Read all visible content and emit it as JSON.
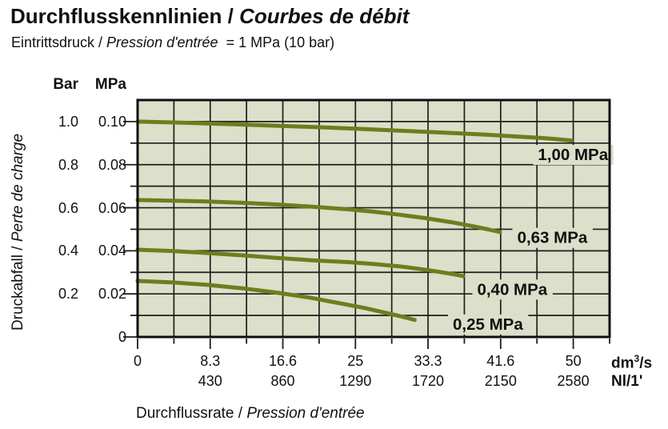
{
  "title": {
    "de": "Durchflusskennlinien /",
    "fr": "Courbes de débit"
  },
  "subtitle": {
    "de": "Eintrittsdruck /",
    "fr": "Pression d'entrée",
    "value": "= 1 MPa (10 bar)"
  },
  "y_axis": {
    "unit_bar": "Bar",
    "unit_mpa": "MPa",
    "bar_ticks": [
      "1.0",
      "0.8",
      "0.6",
      "0.4",
      "0.2"
    ],
    "bar_values": [
      0.1,
      0.08,
      0.06,
      0.04,
      0.02
    ],
    "mpa_ticks": [
      "0.10",
      "0.08",
      "0.06",
      "0.04",
      "0.02",
      "0"
    ],
    "mpa_values": [
      0.1,
      0.08,
      0.06,
      0.04,
      0.02,
      0
    ],
    "label_de": "Druckabfall /",
    "label_fr": "Perte de charge"
  },
  "x_axis": {
    "primary_ticks": [
      "0",
      "8.3",
      "16.6",
      "25",
      "33.3",
      "41.6",
      "50"
    ],
    "primary_values": [
      0,
      8.333,
      16.667,
      25,
      33.333,
      41.667,
      50
    ],
    "secondary_ticks": [
      "430",
      "860",
      "1290",
      "1720",
      "2150",
      "2580"
    ],
    "secondary_values": [
      8.333,
      16.667,
      25,
      33.333,
      41.667,
      50
    ],
    "unit_primary": {
      "pre": "dm",
      "sup": "3",
      "post": "/s"
    },
    "unit_secondary": "Nl/1'",
    "label_de": "Durchflussrate /",
    "label_fr": "Pression d'entrée"
  },
  "chart_data": {
    "type": "line",
    "title": "Durchflusskennlinien / Courbes de débit",
    "subtitle": "Eintrittsdruck / Pression d'entrée = 1 MPa (10 bar)",
    "xlabel": "Durchflussrate / Pression d'entrée",
    "ylabel": "Druckabfall / Perte de charge",
    "x_units": [
      "dm³/s",
      "Nl/1'"
    ],
    "y_units": [
      "Bar",
      "MPa"
    ],
    "xlim": [
      0,
      54.17
    ],
    "ylim": [
      0,
      0.11
    ],
    "grid": true,
    "grid_step_x": 4.1667,
    "grid_step_y": 0.01,
    "x_major_ticks": [
      0,
      8.333,
      16.667,
      25,
      33.333,
      41.667,
      50
    ],
    "x_major_labels": [
      "0",
      "8.3",
      "16.6",
      "25",
      "33.3",
      "41.6",
      "50"
    ],
    "x_minor_ticks": [
      4.167,
      12.5,
      20.833,
      29.167,
      37.5,
      45.833,
      54.17
    ],
    "x_secondary_labels_nl": [
      "430",
      "860",
      "1290",
      "1720",
      "2150",
      "2580"
    ],
    "y_major_ticks": [
      0,
      0.02,
      0.04,
      0.06,
      0.08,
      0.1
    ],
    "y_minor_ticks": [
      0.01,
      0.03,
      0.05,
      0.07,
      0.09
    ],
    "y_labels_mpa": [
      "0",
      "0.02",
      "0.04",
      "0.06",
      "0.08",
      "0.10"
    ],
    "y_labels_bar": [
      "0.2",
      "0.4",
      "0.6",
      "0.8",
      "1.0"
    ],
    "colors": {
      "curve": "#6e7d1e",
      "plot_bg": "#dcdfc9",
      "grid": "#1e1e1e",
      "border": "#0f0f0f",
      "text": "#111111"
    },
    "series": [
      {
        "label": "1,00 MPa",
        "inlet_pressure_mpa": 1.0,
        "label_x": 54.0,
        "label_y": 0.0845,
        "label_anchor": "end",
        "points": [
          [
            0,
            0.1
          ],
          [
            5,
            0.0995
          ],
          [
            10,
            0.0989
          ],
          [
            15,
            0.0982
          ],
          [
            20,
            0.0975
          ],
          [
            25,
            0.0967
          ],
          [
            30,
            0.0958
          ],
          [
            35,
            0.0949
          ],
          [
            40,
            0.0939
          ],
          [
            43,
            0.0932
          ],
          [
            46,
            0.0925
          ],
          [
            48,
            0.0919
          ],
          [
            49.8,
            0.0912
          ]
        ]
      },
      {
        "label": "0,63 MPa",
        "inlet_pressure_mpa": 0.63,
        "label_x": 47.6,
        "label_y": 0.046,
        "label_anchor": "middle",
        "points": [
          [
            0,
            0.0636
          ],
          [
            4,
            0.0633
          ],
          [
            8,
            0.0629
          ],
          [
            12,
            0.0623
          ],
          [
            16,
            0.0615
          ],
          [
            20,
            0.0605
          ],
          [
            24,
            0.0593
          ],
          [
            27,
            0.0582
          ],
          [
            30,
            0.0568
          ],
          [
            33,
            0.0552
          ],
          [
            36,
            0.0533
          ],
          [
            38.5,
            0.0514
          ],
          [
            40.2,
            0.05
          ],
          [
            41.6,
            0.0487
          ]
        ]
      },
      {
        "label": "0,40 MPa",
        "inlet_pressure_mpa": 0.4,
        "label_x": 43.0,
        "label_y": 0.022,
        "label_anchor": "middle",
        "points": [
          [
            0,
            0.0405
          ],
          [
            4,
            0.0399
          ],
          [
            8,
            0.039
          ],
          [
            12,
            0.0379
          ],
          [
            16,
            0.0367
          ],
          [
            20,
            0.0356
          ],
          [
            24,
            0.0348
          ],
          [
            27,
            0.0339
          ],
          [
            30,
            0.0328
          ],
          [
            32.5,
            0.0315
          ],
          [
            34.8,
            0.0301
          ],
          [
            36.3,
            0.0291
          ],
          [
            37.4,
            0.0282
          ]
        ]
      },
      {
        "label": "0,25 MPa",
        "inlet_pressure_mpa": 0.25,
        "label_x": 40.2,
        "label_y": 0.0058,
        "label_anchor": "middle",
        "points": [
          [
            0,
            0.026
          ],
          [
            4,
            0.0253
          ],
          [
            8,
            0.0242
          ],
          [
            12,
            0.0226
          ],
          [
            16,
            0.0206
          ],
          [
            20,
            0.0181
          ],
          [
            23,
            0.0158
          ],
          [
            26,
            0.0135
          ],
          [
            28.5,
            0.0112
          ],
          [
            30.3,
            0.0095
          ],
          [
            31.8,
            0.0079
          ]
        ]
      }
    ]
  }
}
